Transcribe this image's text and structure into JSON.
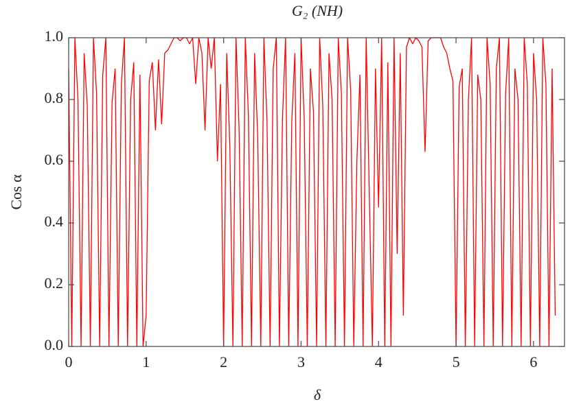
{
  "chart_data": {
    "type": "line",
    "title": "G₂ (NH)",
    "x_label": "δ",
    "y_label": "Cos α",
    "x": [
      0,
      0.04,
      0.08,
      0.12,
      0.16,
      0.2,
      0.24,
      0.28,
      0.32,
      0.36,
      0.4,
      0.44,
      0.48,
      0.52,
      0.56,
      0.6,
      0.64,
      0.68,
      0.72,
      0.76,
      0.8,
      0.84,
      0.88,
      0.92,
      0.96,
      1,
      1.04,
      1.08,
      1.12,
      1.16,
      1.2,
      1.24,
      1.28,
      1.32,
      1.36,
      1.4,
      1.44,
      1.48,
      1.52,
      1.56,
      1.6,
      1.64,
      1.68,
      1.72,
      1.76,
      1.8,
      1.84,
      1.88,
      1.92,
      1.96,
      2,
      2.04,
      2.08,
      2.12,
      2.16,
      2.2,
      2.24,
      2.28,
      2.32,
      2.36,
      2.4,
      2.44,
      2.48,
      2.52,
      2.56,
      2.6,
      2.64,
      2.68,
      2.72,
      2.76,
      2.8,
      2.84,
      2.88,
      2.92,
      2.96,
      3,
      3.04,
      3.08,
      3.12,
      3.16,
      3.2,
      3.24,
      3.28,
      3.32,
      3.36,
      3.4,
      3.44,
      3.48,
      3.52,
      3.56,
      3.6,
      3.64,
      3.68,
      3.72,
      3.76,
      3.8,
      3.84,
      3.88,
      3.92,
      3.96,
      4,
      4.04,
      4.08,
      4.12,
      4.16,
      4.2,
      4.24,
      4.28,
      4.32,
      4.36,
      4.4,
      4.44,
      4.48,
      4.52,
      4.56,
      4.6,
      4.64,
      4.68,
      4.72,
      4.76,
      4.8,
      4.84,
      4.88,
      4.92,
      4.96,
      5,
      5.04,
      5.08,
      5.12,
      5.16,
      5.2,
      5.24,
      5.28,
      5.32,
      5.36,
      5.4,
      5.44,
      5.48,
      5.52,
      5.56,
      5.6,
      5.64,
      5.68,
      5.72,
      5.76,
      5.8,
      5.84,
      5.88,
      5.92,
      5.96,
      6,
      6.04,
      6.08,
      6.12,
      6.16,
      6.2,
      6.24,
      6.28
    ],
    "series": [
      {
        "color": "#ff0000",
        "values": [
          0.9,
          0,
          1,
          0.8,
          0,
          0.95,
          0.78,
          0,
          1,
          0.82,
          0,
          0.88,
          1,
          0,
          0.79,
          0.9,
          0,
          0.85,
          1,
          0,
          0.8,
          0.92,
          0,
          0.88,
          0,
          0.1,
          0.86,
          0.92,
          0.7,
          0.93,
          0.72,
          0.95,
          0.96,
          0.98,
          1,
          1,
          0.99,
          1,
          1,
          0.98,
          1,
          0.85,
          1,
          0.95,
          0.7,
          1,
          0.9,
          1,
          0.6,
          0.85,
          0,
          0.95,
          0.65,
          0,
          1,
          0.7,
          0,
          1,
          0.75,
          0,
          0.95,
          0.68,
          0,
          1,
          0.73,
          0,
          0.9,
          1,
          0,
          0.74,
          1,
          0,
          0.73,
          0.95,
          0,
          1,
          0.74,
          0,
          0.9,
          0.76,
          0,
          1,
          0.78,
          0,
          0.95,
          0.8,
          0,
          1,
          0.82,
          0,
          1,
          0.83,
          0,
          0.6,
          0.88,
          0,
          1,
          0.5,
          0,
          0.9,
          0.45,
          1,
          0,
          0.92,
          0,
          1,
          0.3,
          0.95,
          0.1,
          0.97,
          1,
          0.98,
          1,
          0.99,
          0.97,
          0.63,
          0.99,
          1,
          1,
          1,
          1,
          0.97,
          0.95,
          0.9,
          0.86,
          0,
          0.84,
          0.9,
          0,
          0.8,
          1,
          0,
          0.88,
          0.8,
          0,
          1,
          0.85,
          0,
          0.9,
          1,
          0,
          0.82,
          1,
          0,
          0.9,
          0.8,
          0,
          1,
          0.85,
          0,
          0.95,
          0.8,
          0,
          1,
          0.85,
          0,
          0.9,
          0.1
        ]
      }
    ],
    "xlim": [
      0,
      6.4
    ],
    "ylim": [
      0,
      1
    ],
    "xticks": [
      0,
      1,
      2,
      3,
      4,
      5,
      6
    ],
    "yticks": [
      {
        "value": 0,
        "label": "0.0"
      },
      0.2,
      0.4,
      0.6,
      0.8,
      {
        "value": 1,
        "label": "1.0"
      }
    ]
  }
}
